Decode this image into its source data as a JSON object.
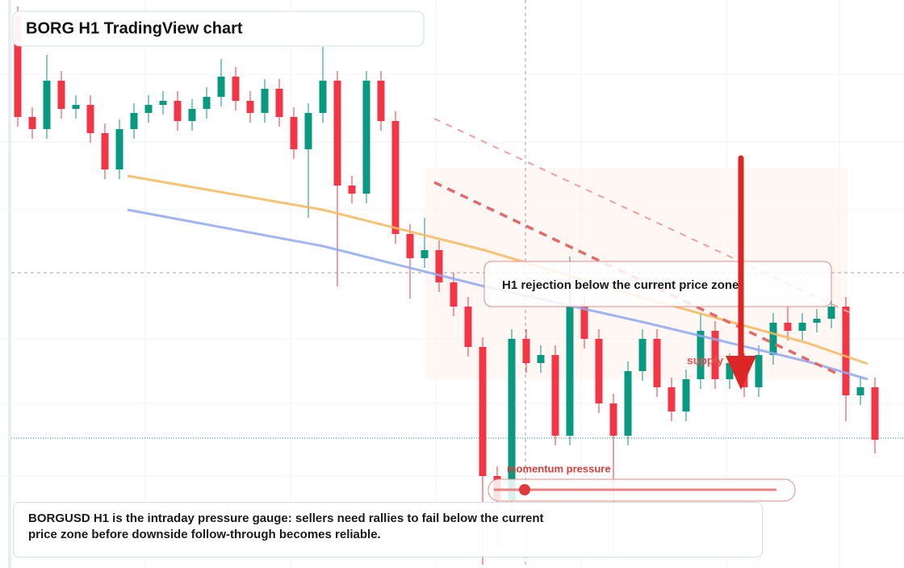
{
  "chart_data": {
    "type": "candlestick",
    "title": "BORG H1 TradingView chart",
    "open": [
      684,
      559,
      544,
      604,
      569,
      574,
      539,
      494,
      544,
      564,
      574,
      579,
      554,
      569,
      584,
      609,
      579,
      564,
      594,
      559,
      519,
      564,
      604,
      474,
      464,
      604,
      554,
      414,
      384,
      394,
      354,
      324,
      274,
      114,
      84,
      284,
      254,
      264,
      164,
      324,
      284,
      204,
      164,
      244,
      284,
      224,
      194,
      234,
      294,
      234,
      254,
      224,
      264,
      304,
      294,
      304,
      309,
      324,
      214,
      224
    ],
    "high": [
      696,
      571,
      636,
      616,
      586,
      586,
      551,
      556,
      576,
      586,
      591,
      591,
      581,
      596,
      631,
      621,
      591,
      606,
      606,
      571,
      576,
      646,
      616,
      486,
      616,
      616,
      566,
      426,
      434,
      406,
      366,
      336,
      286,
      126,
      296,
      296,
      276,
      276,
      386,
      336,
      296,
      216,
      256,
      296,
      296,
      236,
      246,
      316,
      306,
      266,
      266,
      276,
      316,
      326,
      316,
      321,
      336,
      336,
      236,
      236
    ],
    "low": [
      547,
      532,
      532,
      557,
      557,
      527,
      482,
      482,
      532,
      552,
      562,
      542,
      542,
      557,
      572,
      567,
      552,
      552,
      547,
      507,
      434,
      552,
      349,
      452,
      452,
      542,
      402,
      334,
      372,
      342,
      312,
      262,
      4,
      24,
      72,
      242,
      242,
      152,
      152,
      272,
      192,
      14,
      152,
      232,
      212,
      182,
      182,
      222,
      222,
      222,
      212,
      212,
      252,
      282,
      282,
      292,
      297,
      182,
      202,
      142
    ],
    "close": [
      559,
      544,
      604,
      569,
      574,
      539,
      494,
      544,
      564,
      574,
      579,
      554,
      569,
      584,
      609,
      579,
      564,
      594,
      559,
      519,
      564,
      604,
      474,
      464,
      604,
      554,
      414,
      384,
      394,
      354,
      324,
      274,
      114,
      84,
      284,
      254,
      264,
      164,
      324,
      284,
      204,
      164,
      244,
      284,
      224,
      194,
      234,
      294,
      234,
      254,
      224,
      264,
      304,
      294,
      304,
      309,
      324,
      214,
      224,
      159
    ],
    "ylim": [
      0,
      704
    ],
    "up_color": "#089981",
    "down_color": "#f23645",
    "annotations": {
      "rejection": "H1 rejection below the current price zone",
      "supply": "supply",
      "momentum": "momentum pressure",
      "description": "BORGUSD H1 is the intraday pressure gauge: sellers need rallies to fail below the current price zone before downside follow-through becomes reliable."
    }
  }
}
